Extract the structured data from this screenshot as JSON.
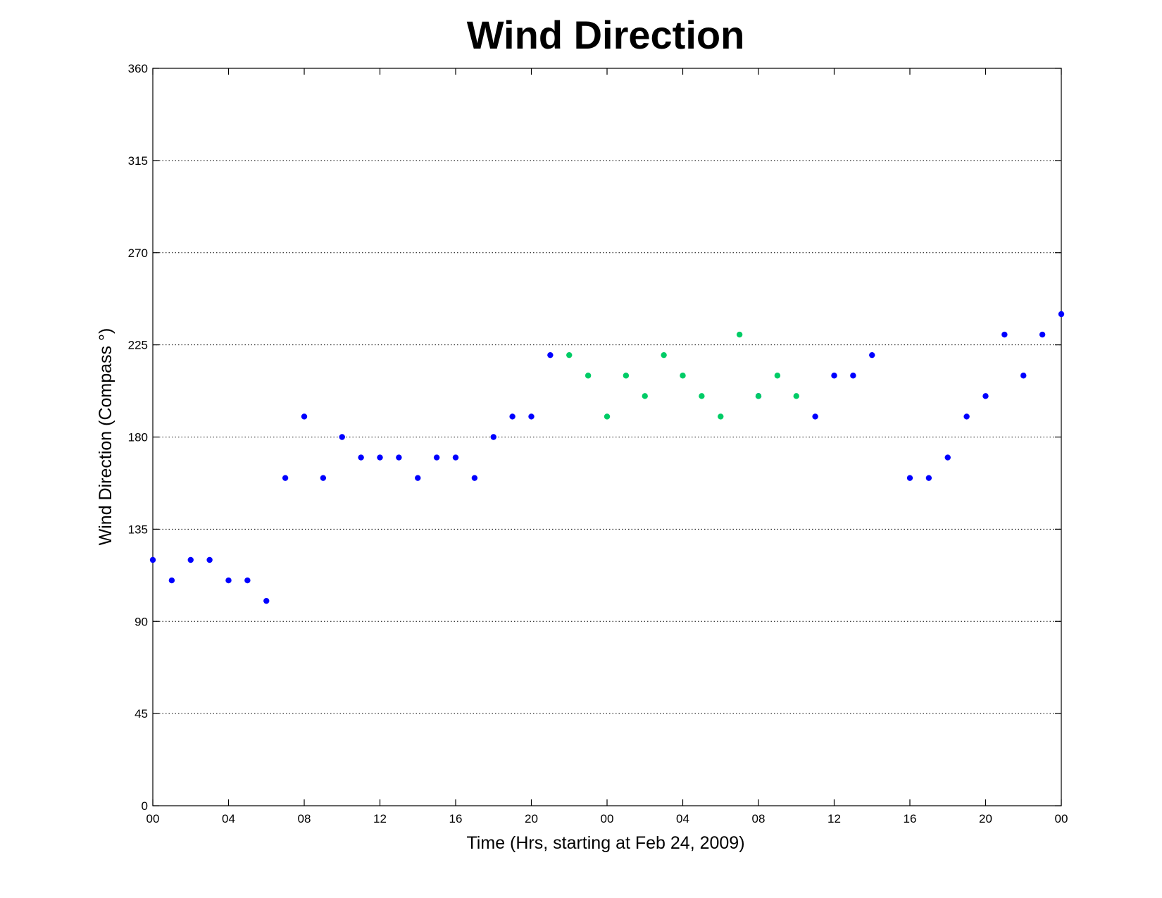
{
  "chart_data": {
    "type": "scatter",
    "title": "Wind Direction",
    "xlabel": "Time (Hrs, starting at Feb 24, 2009)",
    "ylabel": "Wind Direction (Compass  °)",
    "x_unit": "hours",
    "xlim": [
      0,
      48
    ],
    "ylim": [
      0,
      360
    ],
    "x_ticks": [
      {
        "x": 0,
        "label": "00"
      },
      {
        "x": 4,
        "label": "04"
      },
      {
        "x": 8,
        "label": "08"
      },
      {
        "x": 12,
        "label": "12"
      },
      {
        "x": 16,
        "label": "16"
      },
      {
        "x": 20,
        "label": "20"
      },
      {
        "x": 24,
        "label": "00"
      },
      {
        "x": 28,
        "label": "04"
      },
      {
        "x": 32,
        "label": "08"
      },
      {
        "x": 36,
        "label": "12"
      },
      {
        "x": 40,
        "label": "16"
      },
      {
        "x": 44,
        "label": "20"
      },
      {
        "x": 48,
        "label": "00"
      }
    ],
    "y_ticks": [
      0,
      45,
      90,
      135,
      180,
      225,
      270,
      315,
      360
    ],
    "grid": "horizontal",
    "series": [
      {
        "color": "#0000ff",
        "points": [
          [
            0,
            120
          ],
          [
            1,
            110
          ],
          [
            2,
            120
          ],
          [
            3,
            120
          ],
          [
            4,
            110
          ],
          [
            5,
            110
          ],
          [
            6,
            100
          ],
          [
            7,
            160
          ],
          [
            8,
            190
          ],
          [
            9,
            160
          ],
          [
            10,
            180
          ],
          [
            11,
            170
          ],
          [
            12,
            170
          ],
          [
            13,
            170
          ],
          [
            14,
            160
          ],
          [
            15,
            170
          ],
          [
            16,
            170
          ],
          [
            17,
            160
          ],
          [
            18,
            180
          ],
          [
            19,
            190
          ],
          [
            20,
            190
          ],
          [
            21,
            220
          ],
          [
            32,
            200
          ],
          [
            35,
            190
          ],
          [
            36,
            210
          ],
          [
            37,
            210
          ],
          [
            38,
            220
          ],
          [
            40,
            160
          ],
          [
            41,
            160
          ],
          [
            42,
            170
          ],
          [
            43,
            190
          ],
          [
            44,
            200
          ],
          [
            45,
            230
          ],
          [
            46,
            210
          ],
          [
            47,
            230
          ],
          [
            48,
            240
          ]
        ]
      },
      {
        "color": "#00cc66",
        "points": [
          [
            22,
            220
          ],
          [
            23,
            210
          ],
          [
            24,
            190
          ],
          [
            25,
            210
          ],
          [
            26,
            200
          ],
          [
            27,
            220
          ],
          [
            28,
            210
          ],
          [
            29,
            200
          ],
          [
            30,
            190
          ],
          [
            31,
            230
          ],
          [
            32,
            200
          ],
          [
            33,
            210
          ],
          [
            34,
            200
          ]
        ]
      }
    ]
  }
}
